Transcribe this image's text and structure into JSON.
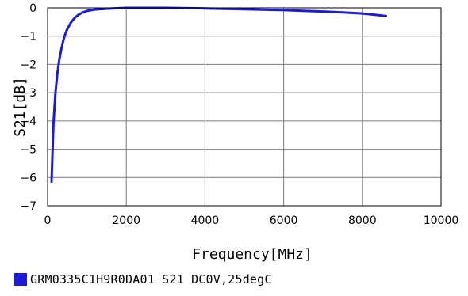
{
  "chart_data": {
    "type": "line",
    "title": "",
    "xlabel": "Frequency[MHz]",
    "ylabel": "S21[dB]",
    "xlim": [
      0,
      10000
    ],
    "ylim": [
      -7,
      0
    ],
    "xticks": [
      0,
      2000,
      4000,
      6000,
      8000,
      10000
    ],
    "yticks": [
      0,
      -1,
      -2,
      -3,
      -4,
      -5,
      -6,
      -7
    ],
    "grid": true,
    "legend_position": "bottom-left",
    "series": [
      {
        "name": "GRM0335C1H9R0DA01 S21 DC0V,25degC",
        "color": "#1c1cd6",
        "x": [
          100,
          150,
          200,
          250,
          300,
          350,
          400,
          450,
          500,
          600,
          700,
          800,
          900,
          1000,
          1200,
          1500,
          2000,
          3000,
          4000,
          5000,
          6000,
          7000,
          7500,
          8000,
          8300,
          8600
        ],
        "y": [
          -6.15,
          -4.1,
          -3.0,
          -2.3,
          -1.8,
          -1.45,
          -1.15,
          -0.92,
          -0.75,
          -0.5,
          -0.34,
          -0.23,
          -0.16,
          -0.11,
          -0.06,
          -0.03,
          0.0,
          0.0,
          -0.02,
          -0.05,
          -0.08,
          -0.13,
          -0.16,
          -0.2,
          -0.24,
          -0.29
        ]
      }
    ]
  }
}
